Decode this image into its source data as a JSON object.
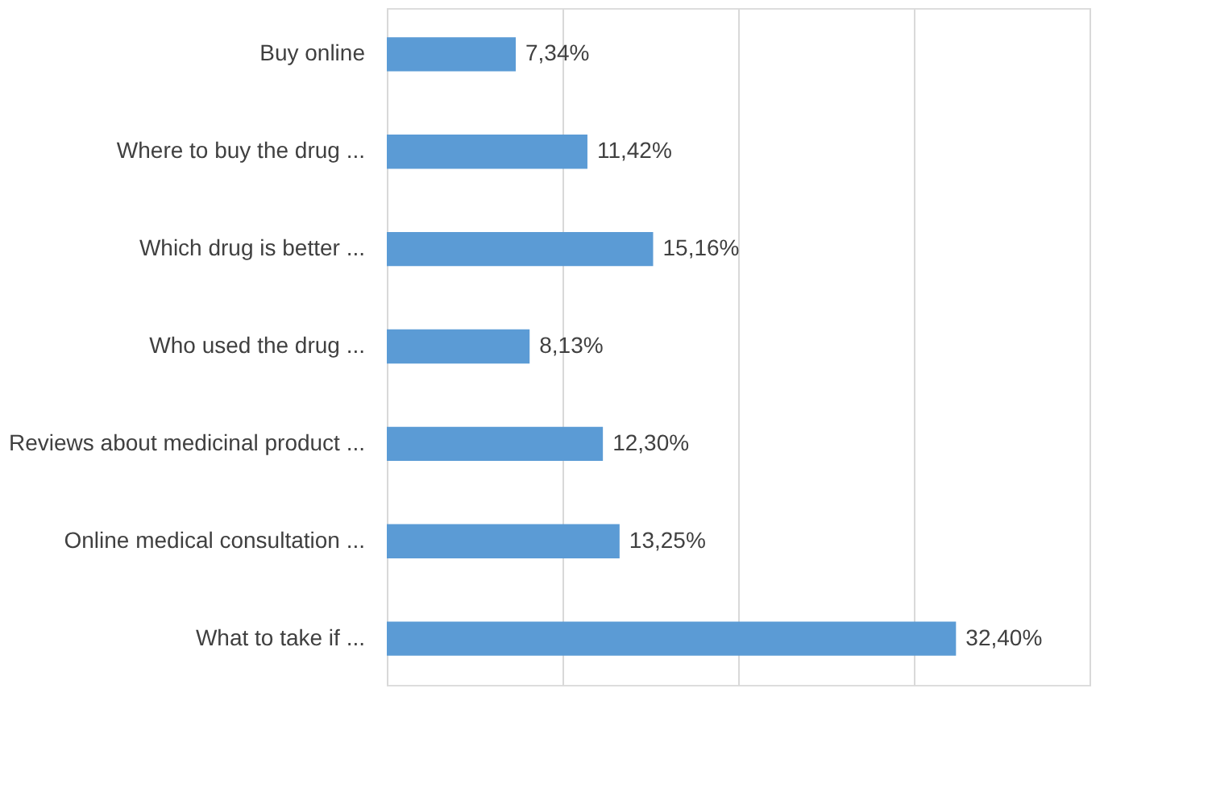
{
  "chart_data": {
    "type": "bar",
    "orientation": "horizontal",
    "categories": [
      "Buy online",
      "Where to buy the drug ...",
      "Which drug is better ...",
      "Who used the drug ...",
      "Reviews about medicinal product ...",
      "Online medical consultation ...",
      "What to take if ..."
    ],
    "values": [
      7.34,
      11.42,
      15.16,
      8.13,
      12.3,
      13.25,
      32.4
    ],
    "value_labels": [
      "7,34%",
      "11,42%",
      "15,16%",
      "8,13%",
      "12,30%",
      "13,25%",
      "32,40%"
    ],
    "color": "#5b9bd5",
    "xlim": [
      0,
      40
    ],
    "xticks": [
      {
        "value": 0,
        "label": null
      },
      {
        "value": 10,
        "label": null
      },
      {
        "value": 20,
        "label": null
      },
      {
        "value": 30,
        "label": null
      },
      {
        "value": 40,
        "label": null
      }
    ],
    "grid": "x",
    "tick_labels": "y"
  }
}
